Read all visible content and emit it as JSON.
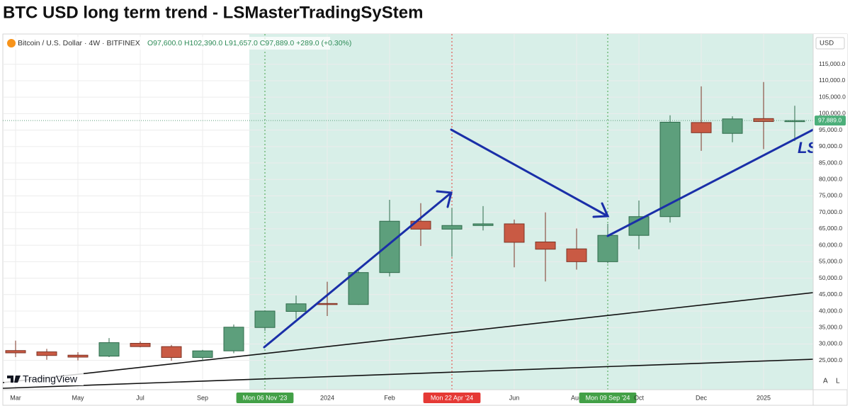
{
  "chart_data": {
    "type": "candlestick",
    "title": "BTC USD long term trend - LSMasterTradingSyStem",
    "symbol": "Bitcoin / U.S. Dollar · 4W · BITFINEX",
    "ohlc_text": "O97,600.0 H102,390.0 L91,657.0 C97,889.0 +289.0 (+0.30%)",
    "currency": "USD",
    "last_price_label": "97,889.0",
    "annotation": "LS",
    "logo": "TradingView",
    "scale_buttons": [
      "A",
      "L"
    ],
    "categories": [
      "Mar",
      null,
      "May",
      null,
      "Jul",
      null,
      "Sep",
      null,
      "Mon 06 Nov '23",
      null,
      "2024",
      null,
      "Feb",
      null,
      "Mon 22 Apr '24",
      null,
      "Jun",
      null,
      "Aug",
      "Mon 09 Sep '24",
      "Oct",
      null,
      "Dec",
      null,
      "2025",
      null
    ],
    "open": [
      28000,
      27600,
      26600,
      26300,
      30200,
      29200,
      25900,
      27900,
      35000,
      39900,
      42300,
      42000,
      51700,
      67300,
      64900,
      66000,
      66500,
      61000,
      58900,
      55000,
      63000,
      68700,
      97300,
      94000,
      98500,
      97600
    ],
    "high": [
      31000,
      28500,
      27500,
      31800,
      30800,
      29700,
      28200,
      35900,
      40200,
      44700,
      48900,
      52900,
      73800,
      72800,
      71300,
      71900,
      67800,
      70000,
      65100,
      66500,
      73600,
      99500,
      108300,
      99200,
      109600,
      102390
    ],
    "low": [
      26000,
      25200,
      25000,
      26000,
      29000,
      24900,
      25000,
      27200,
      34000,
      37600,
      38500,
      41900,
      50500,
      59800,
      56500,
      64500,
      53300,
      49000,
      52600,
      54500,
      58800,
      66900,
      88700,
      91300,
      89200,
      91657
    ],
    "close": [
      27300,
      26500,
      26000,
      30400,
      29200,
      25900,
      27900,
      35100,
      40000,
      42200,
      42000,
      51700,
      67300,
      64900,
      66000,
      66500,
      60900,
      58800,
      55000,
      63000,
      68700,
      97400,
      94200,
      98400,
      97600,
      97889
    ],
    "up_color": "#5d9f7c",
    "down_color": "#c95a44",
    "ylim": [
      16100,
      124200
    ],
    "yticks": [
      {
        "value": 25000,
        "label": "25,000.0"
      },
      {
        "value": 30000,
        "label": "30,000.0"
      },
      {
        "value": 35000,
        "label": "35,000.0"
      },
      {
        "value": 40000,
        "label": "40,000.0"
      },
      {
        "value": 45000,
        "label": "45,000.0"
      },
      {
        "value": 50000,
        "label": "50,000.0"
      },
      {
        "value": 55000,
        "label": "55,000.0"
      },
      {
        "value": 60000,
        "label": "60,000.0"
      },
      {
        "value": 65000,
        "label": "65,000.0"
      },
      {
        "value": 70000,
        "label": "70,000.0"
      },
      {
        "value": 75000,
        "label": "75,000.0"
      },
      {
        "value": 80000,
        "label": "80,000.0"
      },
      {
        "value": 85000,
        "label": "85,000.0"
      },
      {
        "value": 90000,
        "label": "90,000.0"
      },
      {
        "value": 95000,
        "label": "95,000.0"
      },
      {
        "value": 100000,
        "label": "100,000.0"
      },
      {
        "value": 105000,
        "label": "105,000.0"
      },
      {
        "value": 110000,
        "label": "110,000.0"
      },
      {
        "value": 115000,
        "label": "115,000.0"
      }
    ],
    "grid": true
  }
}
